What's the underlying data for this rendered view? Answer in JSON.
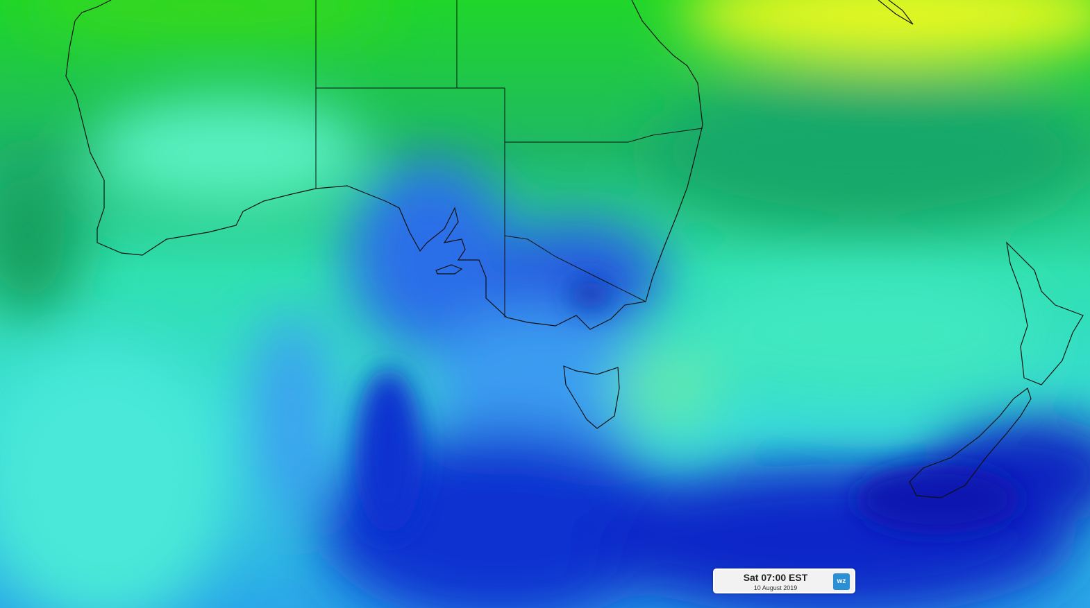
{
  "timestamp": {
    "time": "Sat 07:00 EST",
    "date": "10 August 2019"
  },
  "logo": {
    "text": "wz"
  }
}
